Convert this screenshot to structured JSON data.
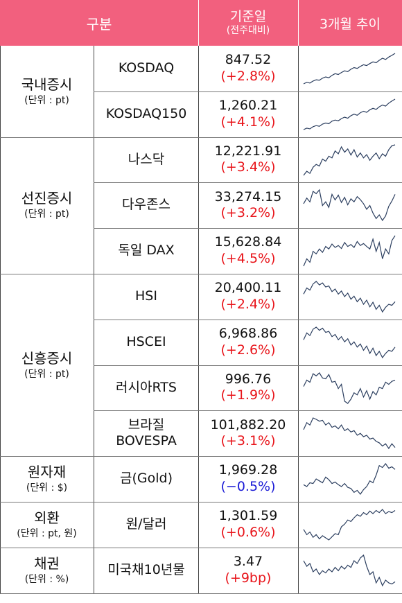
{
  "header": {
    "category": "구분",
    "value_line1": "기준일",
    "value_line2": "(전주대비)",
    "trend": "3개월 추이"
  },
  "colors": {
    "header_bg": "#f2607e",
    "up": "#e8141a",
    "down": "#1b1bd6",
    "spark": "#2a3d5e"
  },
  "groups": [
    {
      "name": "국내증시",
      "unit": "(단위 : pt)"
    },
    {
      "name": "선진증시",
      "unit": "(단위 : pt)"
    },
    {
      "name": "신흥증시",
      "unit": "(단위 : pt)"
    },
    {
      "name": "원자재",
      "unit": "(단위 : $)"
    },
    {
      "name": "외환",
      "unit": "(단위 : pt, 원)"
    },
    {
      "name": "채권",
      "unit": "(단위 : %)"
    }
  ],
  "chart_data": {
    "type": "table",
    "rows": [
      {
        "group": "국내증시",
        "name": "KOSDAQ",
        "value": "847.52",
        "change": "(+2.8%)",
        "direction": "up",
        "trend": [
          20,
          24,
          22,
          27,
          30,
          29,
          34,
          37,
          35,
          41,
          45,
          43,
          48,
          52,
          50,
          56,
          60,
          58,
          63,
          67,
          65,
          70,
          74,
          72,
          78,
          83,
          80,
          86,
          90,
          95
        ]
      },
      {
        "group": "국내증시",
        "name": "KOSDAQ150",
        "value": "1,260.21",
        "change": "(+4.1%)",
        "direction": "up",
        "trend": [
          10,
          14,
          12,
          18,
          21,
          19,
          25,
          28,
          26,
          33,
          36,
          34,
          40,
          44,
          41,
          48,
          52,
          49,
          56,
          60,
          57,
          64,
          68,
          65,
          72,
          77,
          74,
          82,
          88,
          93
        ]
      },
      {
        "group": "선진증시",
        "name": "나스닥",
        "value": "12,221.91",
        "change": "(+3.4%)",
        "direction": "up",
        "trend": [
          15,
          25,
          20,
          35,
          42,
          38,
          55,
          50,
          62,
          58,
          75,
          68,
          85,
          72,
          80,
          65,
          78,
          60,
          70,
          58,
          66,
          52,
          62,
          70,
          56,
          68,
          62,
          78,
          88,
          90
        ]
      },
      {
        "group": "선진증시",
        "name": "다우존스",
        "value": "33,274.15",
        "change": "(+3.2%)",
        "direction": "up",
        "trend": [
          55,
          70,
          60,
          88,
          82,
          92,
          50,
          60,
          45,
          80,
          65,
          78,
          58,
          72,
          52,
          68,
          60,
          74,
          66,
          55,
          40,
          50,
          30,
          15,
          25,
          10,
          22,
          48,
          62,
          80
        ]
      },
      {
        "group": "선진증시",
        "name": "독일 DAX",
        "value": "15,628.84",
        "change": "(+4.5%)",
        "direction": "up",
        "trend": [
          20,
          35,
          28,
          50,
          45,
          55,
          48,
          60,
          55,
          65,
          58,
          62,
          56,
          68,
          60,
          64,
          58,
          70,
          62,
          66,
          60,
          55,
          75,
          50,
          68,
          35,
          55,
          45,
          72,
          82
        ]
      },
      {
        "group": "신흥증시",
        "name": "HSI",
        "value": "20,400.11",
        "change": "(+2.4%)",
        "direction": "up",
        "trend": [
          60,
          72,
          68,
          80,
          85,
          78,
          82,
          74,
          76,
          65,
          70,
          60,
          66,
          55,
          62,
          50,
          56,
          45,
          52,
          40,
          48,
          35,
          44,
          30,
          38,
          25,
          34,
          40,
          38,
          45
        ]
      },
      {
        "group": "신흥증시",
        "name": "HSCEI",
        "value": "6,968.86",
        "change": "(+2.6%)",
        "direction": "up",
        "trend": [
          62,
          75,
          70,
          82,
          86,
          80,
          84,
          76,
          78,
          68,
          72,
          62,
          68,
          58,
          64,
          52,
          58,
          48,
          54,
          42,
          50,
          36,
          46,
          32,
          40,
          28,
          36,
          42,
          40,
          48
        ]
      },
      {
        "group": "신흥증시",
        "name": "러시아RTS",
        "value": "996.76",
        "change": "(+1.9%)",
        "direction": "up",
        "trend": [
          60,
          75,
          70,
          90,
          85,
          92,
          80,
          78,
          88,
          70,
          72,
          55,
          65,
          25,
          20,
          30,
          45,
          40,
          55,
          35,
          50,
          30,
          48,
          40,
          58,
          55,
          70,
          65,
          72,
          75
        ]
      },
      {
        "group": "신흥증시",
        "name": "브라질\nBOVESPA",
        "value": "101,882.20",
        "change": "(+3.1%)",
        "direction": "up",
        "trend": [
          60,
          75,
          70,
          85,
          82,
          78,
          80,
          70,
          75,
          65,
          68,
          62,
          70,
          58,
          62,
          55,
          58,
          48,
          52,
          45,
          48,
          40,
          42,
          35,
          32,
          25,
          30,
          20,
          30,
          22
        ]
      },
      {
        "group": "원자재",
        "name": "금(Gold)",
        "value": "1,969.28",
        "change": "(−0.5%)",
        "direction": "down",
        "trend": [
          35,
          30,
          40,
          38,
          50,
          45,
          40,
          55,
          48,
          38,
          42,
          35,
          30,
          38,
          28,
          25,
          15,
          20,
          10,
          22,
          30,
          45,
          40,
          60,
          85,
          80,
          90,
          78,
          82,
          75
        ]
      },
      {
        "group": "외환",
        "name": "원/달러",
        "value": "1,301.59",
        "change": "(+0.6%)",
        "direction": "up",
        "trend": [
          40,
          30,
          35,
          25,
          30,
          22,
          28,
          24,
          20,
          26,
          32,
          30,
          45,
          50,
          58,
          55,
          62,
          68,
          65,
          72,
          68,
          75,
          70,
          76,
          72,
          78,
          70,
          74,
          72,
          76
        ]
      },
      {
        "group": "채권",
        "name": "미국채10년물",
        "value": "3.47",
        "change": "(+9bp)",
        "direction": "up",
        "trend": [
          70,
          60,
          65,
          50,
          55,
          45,
          52,
          48,
          55,
          50,
          58,
          52,
          60,
          55,
          62,
          58,
          70,
          65,
          75,
          80,
          60,
          45,
          50,
          30,
          40,
          25,
          35,
          30,
          28,
          32
        ]
      }
    ]
  }
}
